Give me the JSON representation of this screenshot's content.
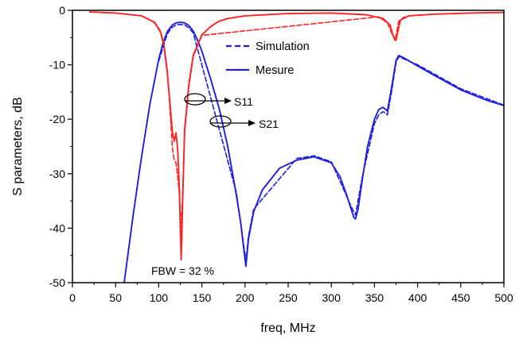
{
  "chart_data": {
    "type": "line",
    "xlabel": "freq, MHz",
    "ylabel": "S parameters, dB",
    "xlim": [
      0,
      500
    ],
    "ylim": [
      -50,
      0
    ],
    "x_ticks": [
      "0",
      "50",
      "100",
      "150",
      "200",
      "250",
      "300",
      "350",
      "400",
      "450",
      "500"
    ],
    "y_ticks": [
      "0",
      "-10",
      "-20",
      "-30",
      "-40",
      "-50"
    ],
    "grid": false,
    "legend": {
      "position": "top-center",
      "entries": [
        {
          "label": "Simulation",
          "style": "dashed"
        },
        {
          "label": "Mesure",
          "style": "solid"
        }
      ]
    },
    "annotations": [
      {
        "label": "S11",
        "x": 145,
        "y": -16.8
      },
      {
        "label": "S21",
        "x": 172,
        "y": -20.5
      },
      {
        "label": "FBW = 32 %",
        "x": 137,
        "y": -48.2
      }
    ],
    "series": [
      {
        "key": "S11_measured",
        "color": "#ff2222",
        "style": "solid",
        "x": [
          20,
          50,
          80,
          95,
          102,
          106,
          110,
          113,
          116,
          118,
          120,
          122,
          124,
          125,
          126,
          128,
          130,
          135,
          140,
          150,
          160,
          170,
          180,
          200,
          250,
          300,
          340,
          360,
          368,
          372,
          375,
          380,
          390,
          420,
          460,
          500
        ],
        "y": [
          -0.3,
          -0.5,
          -1.0,
          -2.2,
          -4.0,
          -6.5,
          -11.5,
          -17.0,
          -22.5,
          -24.0,
          -22.5,
          -25.5,
          -33.0,
          -40.0,
          -45.8,
          -33.0,
          -22.0,
          -13.5,
          -8.2,
          -4.5,
          -3.0,
          -2.0,
          -1.5,
          -1.0,
          -0.6,
          -0.5,
          -0.8,
          -1.5,
          -2.7,
          -4.8,
          -5.5,
          -1.8,
          -1.0,
          -0.7,
          -0.5,
          -0.4
        ]
      },
      {
        "key": "S11_simulated",
        "color": "#ff2222",
        "style": "dashed",
        "x": [
          95,
          102,
          106,
          110,
          113,
          116,
          118,
          120,
          122,
          124,
          126,
          128,
          130,
          135,
          140,
          150,
          355,
          365,
          370,
          374,
          378,
          385
        ],
        "y": [
          -2.1,
          -3.8,
          -6.2,
          -11.0,
          -18.0,
          -25.5,
          -27.5,
          -28.0,
          -30.5,
          -34.0,
          -40.0,
          -33.0,
          -22.5,
          -14.0,
          -8.5,
          -4.6,
          -1.2,
          -2.3,
          -4.2,
          -5.6,
          -2.0,
          -1.2
        ]
      },
      {
        "key": "S21_measured",
        "color": "#1f1fe0",
        "style": "solid",
        "x": [
          60,
          70,
          80,
          90,
          100,
          105,
          110,
          115,
          120,
          125,
          130,
          135,
          140,
          145,
          150,
          160,
          170,
          180,
          190,
          195,
          198,
          201,
          204,
          210,
          220,
          240,
          260,
          280,
          300,
          310,
          318,
          323,
          326,
          328,
          331,
          336,
          342,
          350,
          355,
          360,
          365,
          370,
          375,
          378,
          385,
          400,
          420,
          450,
          480,
          500
        ],
        "y": [
          -50,
          -38,
          -27,
          -17,
          -9,
          -6,
          -3.9,
          -2.8,
          -2.3,
          -2.2,
          -2.3,
          -2.8,
          -3.8,
          -5.5,
          -7.5,
          -12.5,
          -18.0,
          -25.0,
          -34.0,
          -39.0,
          -43.0,
          -47.0,
          -42.0,
          -37.0,
          -33.0,
          -29.0,
          -27.5,
          -26.9,
          -28.0,
          -30.5,
          -34.0,
          -36.5,
          -38.0,
          -38.3,
          -36.5,
          -31.0,
          -25.0,
          -20.0,
          -18.2,
          -17.8,
          -18.5,
          -14.0,
          -9.2,
          -8.3,
          -8.8,
          -10.2,
          -12.0,
          -14.6,
          -16.5,
          -17.5
        ]
      },
      {
        "key": "S21_simulated",
        "color": "#1f1fe0",
        "style": "dashed",
        "x": [
          100,
          110,
          115,
          120,
          125,
          130,
          135,
          140,
          190,
          198,
          201,
          204,
          210,
          260,
          280,
          300,
          323,
          328,
          336,
          350,
          355,
          360,
          365,
          370,
          375,
          378,
          400,
          450,
          500
        ],
        "y": [
          -9.3,
          -4.3,
          -3.2,
          -2.7,
          -2.6,
          -2.7,
          -3.2,
          -4.2,
          -33.5,
          -42.5,
          -46.0,
          -41.5,
          -36.5,
          -27.2,
          -26.7,
          -27.8,
          -36.0,
          -37.6,
          -30.5,
          -20.8,
          -19.2,
          -18.6,
          -19.2,
          -14.8,
          -9.6,
          -8.5,
          -10.0,
          -14.4,
          -17.4
        ]
      }
    ]
  }
}
